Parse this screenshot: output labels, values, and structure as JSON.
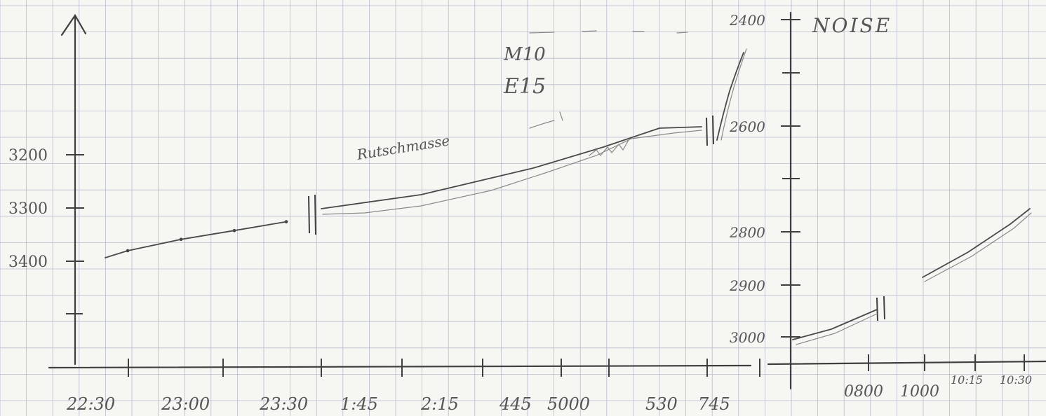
{
  "chart_data": {
    "type": "line",
    "title": "",
    "panels": [
      {
        "name": "left",
        "xlabel": "",
        "ylabel": "",
        "x_tick_labels": [
          "22:30",
          "23:00",
          "23:30",
          "1:45",
          "2:15",
          "445",
          "5000",
          "530",
          "745"
        ],
        "y_ticks": [
          {
            "value": 3200,
            "label": "3200"
          },
          {
            "value": 3300,
            "label": "3300"
          },
          {
            "value": 3400,
            "label": "3400"
          }
        ],
        "y_reversed": true,
        "ylim": [
          3540,
          3040
        ],
        "annotations": [
          "Rutschmasse"
        ],
        "series": [
          {
            "segment": 1,
            "x": [
              "22:30",
              "23:00",
              "23:30",
              "23:40"
            ],
            "values": [
              3405,
              3360,
              3325,
              3290
            ]
          },
          {
            "segment": 2,
            "x": [
              "1:45",
              "2:15",
              "445",
              "5000",
              "530",
              "745"
            ],
            "values": [
              3300,
              3290,
              3230,
              3190,
              3120,
              3115
            ]
          }
        ]
      },
      {
        "name": "right",
        "title": "NOISE",
        "annotations": [
          "M10",
          "E15"
        ],
        "x_tick_labels": [
          "0800",
          "1000",
          "10:15",
          "10:30"
        ],
        "y_ticks": [
          {
            "value": 2400,
            "label": "2400"
          },
          {
            "value": 2600,
            "label": "2600"
          },
          {
            "value": 2800,
            "label": "2800"
          },
          {
            "value": 2900,
            "label": "2900"
          },
          {
            "value": 3000,
            "label": "3000"
          }
        ],
        "y_reversed": true,
        "series": [
          {
            "segment": 1,
            "x": [
              "0800",
              "0830"
            ],
            "values": [
              3010,
              2950
            ]
          },
          {
            "segment": 2,
            "x": [
              "1000",
              "10:30"
            ],
            "values": [
              2890,
              2740
            ]
          }
        ]
      }
    ]
  }
}
